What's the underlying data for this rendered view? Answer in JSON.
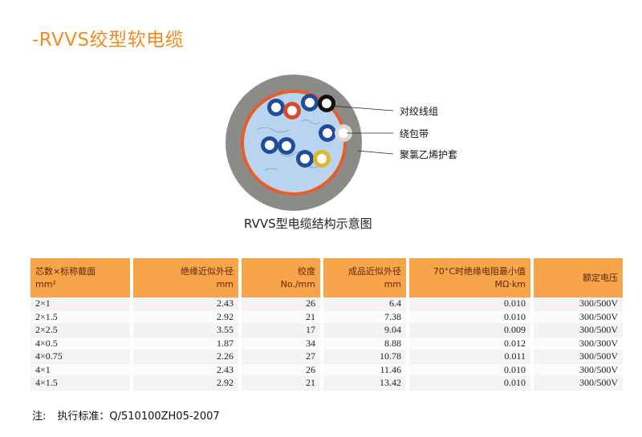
{
  "title": "-RVVS绞型软电缆",
  "diagram": {
    "labels": [
      "对绞线组",
      "绕包带",
      "聚氯乙烯护套"
    ],
    "caption": "RVVS型电缆结构示意图",
    "colors": {
      "sheath": "#8b8b87",
      "tape": "#e85d2a",
      "filler": "#b9d4ee",
      "insulation_blue": "#1f4d9c",
      "insulation_red": "#d84a2a",
      "insulation_black": "#111111",
      "insulation_yellow": "#e2b62c"
    }
  },
  "table": {
    "headers": [
      [
        "芯数×标称截面",
        "mm²"
      ],
      [
        "绝缘近似外径",
        "mm"
      ],
      [
        "绞度",
        "No./mm"
      ],
      [
        "成品近似外径",
        "mm"
      ],
      [
        "70°C时绝缘电阻最小值",
        "MΩ·km"
      ],
      [
        "额定电压"
      ]
    ],
    "rows": [
      [
        "2×1",
        "2.43",
        "26",
        "6.4",
        "0.010",
        "300/500V"
      ],
      [
        "2×1.5",
        "2.92",
        "21",
        "7.38",
        "0.010",
        "300/500V"
      ],
      [
        "2×2.5",
        "3.55",
        "17",
        "9.04",
        "0.009",
        "300/500V"
      ],
      [
        "4×0.5",
        "1.87",
        "34",
        "8.88",
        "0.012",
        "300/300V"
      ],
      [
        "4×0.75",
        "2.26",
        "27",
        "10.78",
        "0.011",
        "300/500V"
      ],
      [
        "4×1",
        "2.43",
        "26",
        "11.46",
        "0.010",
        "300/500V"
      ],
      [
        "4×1.5",
        "2.92",
        "21",
        "13.42",
        "0.010",
        "300/500V"
      ]
    ]
  },
  "note": {
    "prefix": "注:",
    "text": "执行标准：Q/510100ZH05-2007"
  }
}
